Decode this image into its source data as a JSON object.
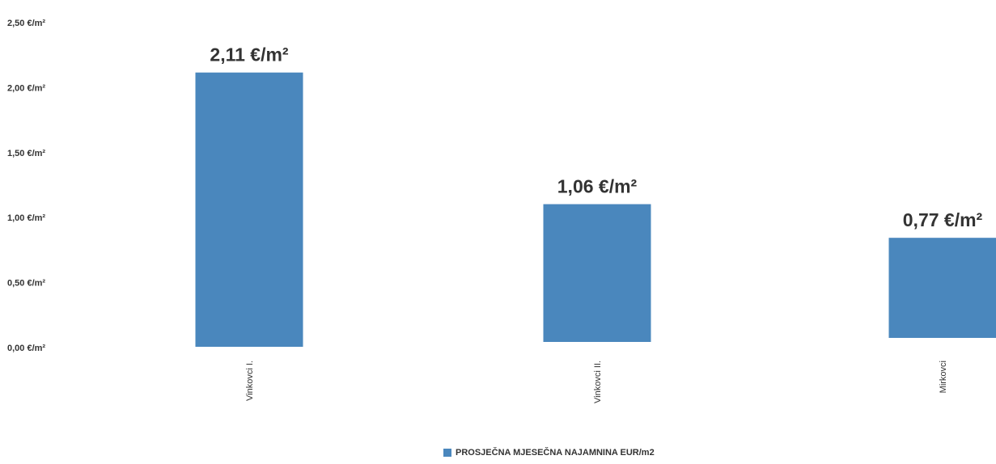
{
  "chart_data": {
    "type": "bar",
    "categories": [
      "Vinkovci I.",
      "Vinkovci II.",
      "Mirkovci"
    ],
    "series": [
      {
        "name": "PROSJEČNA MJESEČNA NAJAMNINA EUR/m2",
        "values": [
          2.11,
          1.06,
          0.77
        ],
        "data_labels": [
          "2,11 €/m²",
          "1,06 €/m²",
          "0,77 €/m²"
        ]
      }
    ],
    "ylim": [
      0,
      2.5
    ],
    "yticks": [
      {
        "value": 0,
        "label": "0,00 €/m²"
      },
      {
        "value": 0.5,
        "label": "0,50 €/m²"
      },
      {
        "value": 1.0,
        "label": "1,00 €/m²"
      },
      {
        "value": 1.5,
        "label": "1,50 €/m²"
      },
      {
        "value": 2.0,
        "label": "2,00 €/m²"
      },
      {
        "value": 2.5,
        "label": "2,50 €/m²"
      }
    ],
    "title": "",
    "xlabel": "",
    "ylabel": "",
    "grid": false,
    "legend_position": "bottom",
    "bar_color": "#4a87bd"
  }
}
